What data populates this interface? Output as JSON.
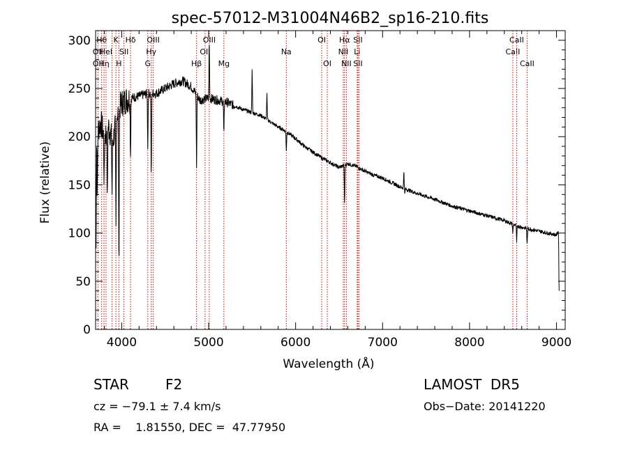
{
  "chart_data": {
    "type": "line",
    "title": "spec-57012-M31004N46B2_sp16-210.fits",
    "xlabel": "Wavelength (Å)",
    "ylabel": "Flux (relative)",
    "xlim": [
      3700,
      9100
    ],
    "ylim": [
      0,
      310
    ],
    "xticks": [
      4000,
      5000,
      6000,
      7000,
      8000,
      9000
    ],
    "yticks": [
      0,
      50,
      100,
      150,
      200,
      250,
      300
    ],
    "grid": false,
    "line_color": "#000000",
    "marker_color": "#cc0000",
    "continuum": {
      "x": [
        3700,
        3760,
        3800,
        3850,
        3900,
        3950,
        4000,
        4050,
        4100,
        4200,
        4300,
        4400,
        4500,
        4600,
        4700,
        4800,
        4900,
        5000,
        5100,
        5200,
        5300,
        5400,
        5500,
        5600,
        5700,
        5800,
        5900,
        6000,
        6100,
        6200,
        6300,
        6400,
        6500,
        6600,
        6700,
        6800,
        6900,
        7000,
        7200,
        7400,
        7600,
        7800,
        8000,
        8200,
        8400,
        8500,
        8600,
        8700,
        8800,
        8900,
        9000,
        9030
      ],
      "y": [
        200,
        215,
        200,
        210,
        195,
        225,
        235,
        238,
        240,
        242,
        245,
        245,
        250,
        255,
        258,
        252,
        238,
        240,
        238,
        236,
        232,
        228,
        225,
        222,
        216,
        210,
        205,
        198,
        190,
        184,
        178,
        173,
        168,
        172,
        169,
        164,
        160,
        157,
        148,
        141,
        135,
        128,
        123,
        118,
        113,
        109,
        106,
        104,
        102,
        100,
        98,
        104
      ]
    },
    "features": [
      {
        "x": 3705,
        "y": 90
      },
      {
        "x": 3720,
        "y": 140
      },
      {
        "x": 3798,
        "y": 150
      },
      {
        "x": 3835,
        "y": 130
      },
      {
        "x": 3889,
        "y": 140
      },
      {
        "x": 3934,
        "y": 100
      },
      {
        "x": 3968,
        "y": 60
      },
      {
        "x": 4102,
        "y": 180
      },
      {
        "x": 4300,
        "y": 190
      },
      {
        "x": 4340,
        "y": 155
      },
      {
        "x": 4861,
        "y": 170
      },
      {
        "x": 5007,
        "y": 300
      },
      {
        "x": 5175,
        "y": 200
      },
      {
        "x": 5500,
        "y": 270
      },
      {
        "x": 5670,
        "y": 245
      },
      {
        "x": 5893,
        "y": 185
      },
      {
        "x": 6563,
        "y": 130
      },
      {
        "x": 7245,
        "y": 165
      },
      {
        "x": 7255,
        "y": 140
      },
      {
        "x": 8498,
        "y": 100
      },
      {
        "x": 8542,
        "y": 90
      },
      {
        "x": 8662,
        "y": 88
      },
      {
        "x": 9030,
        "y": 40
      }
    ],
    "line_markers": [
      {
        "x": 3727,
        "rows": [
          "",
          "OII",
          "OII"
        ]
      },
      {
        "x": 3770,
        "rows": [
          "Hθ",
          "",
          ""
        ]
      },
      {
        "x": 3797,
        "rows": [
          "",
          "",
          "Hη"
        ]
      },
      {
        "x": 3820,
        "rows": [
          "",
          "HeI",
          ""
        ]
      },
      {
        "x": 3889,
        "rows": [
          "",
          "",
          ""
        ]
      },
      {
        "x": 3934,
        "rows": [
          "K",
          "",
          ""
        ]
      },
      {
        "x": 3968,
        "rows": [
          "",
          "",
          "H"
        ]
      },
      {
        "x": 4026,
        "rows": [
          "",
          "SII",
          ""
        ]
      },
      {
        "x": 4102,
        "rows": [
          "Hδ",
          "",
          ""
        ]
      },
      {
        "x": 4300,
        "rows": [
          "",
          "",
          "G"
        ]
      },
      {
        "x": 4340,
        "rows": [
          "",
          "Hγ",
          ""
        ]
      },
      {
        "x": 4363,
        "rows": [
          "OIII",
          "",
          ""
        ]
      },
      {
        "x": 4861,
        "rows": [
          "",
          "",
          "Hβ"
        ]
      },
      {
        "x": 4959,
        "rows": [
          "",
          "OII",
          ""
        ]
      },
      {
        "x": 5007,
        "rows": [
          "OIII",
          "",
          ""
        ]
      },
      {
        "x": 5175,
        "rows": [
          "",
          "",
          "Mg"
        ]
      },
      {
        "x": 5893,
        "rows": [
          "",
          "Na",
          ""
        ]
      },
      {
        "x": 6300,
        "rows": [
          "OI",
          "",
          ""
        ]
      },
      {
        "x": 6364,
        "rows": [
          "",
          "",
          "OI"
        ]
      },
      {
        "x": 6548,
        "rows": [
          "",
          "NII",
          ""
        ]
      },
      {
        "x": 6563,
        "rows": [
          "Hα",
          "",
          ""
        ]
      },
      {
        "x": 6584,
        "rows": [
          "",
          "",
          "NII"
        ]
      },
      {
        "x": 6708,
        "rows": [
          "",
          "Li",
          ""
        ]
      },
      {
        "x": 6717,
        "rows": [
          "SII",
          "",
          "SII"
        ]
      },
      {
        "x": 6731,
        "rows": [
          "",
          "",
          ""
        ]
      },
      {
        "x": 8498,
        "rows": [
          "",
          "CaII",
          ""
        ]
      },
      {
        "x": 8542,
        "rows": [
          "CaII",
          "",
          ""
        ]
      },
      {
        "x": 8662,
        "rows": [
          "",
          "",
          "CaII"
        ]
      }
    ]
  },
  "info": {
    "class": "STAR",
    "subclass": "F2",
    "survey": "LAMOST  DR5",
    "redshift": "cz = −79.1 ± 7.4 km/s",
    "obs_date": "Obs−Date: 20141220",
    "coords": "RA =    1.81550, DEC =  47.77950"
  }
}
